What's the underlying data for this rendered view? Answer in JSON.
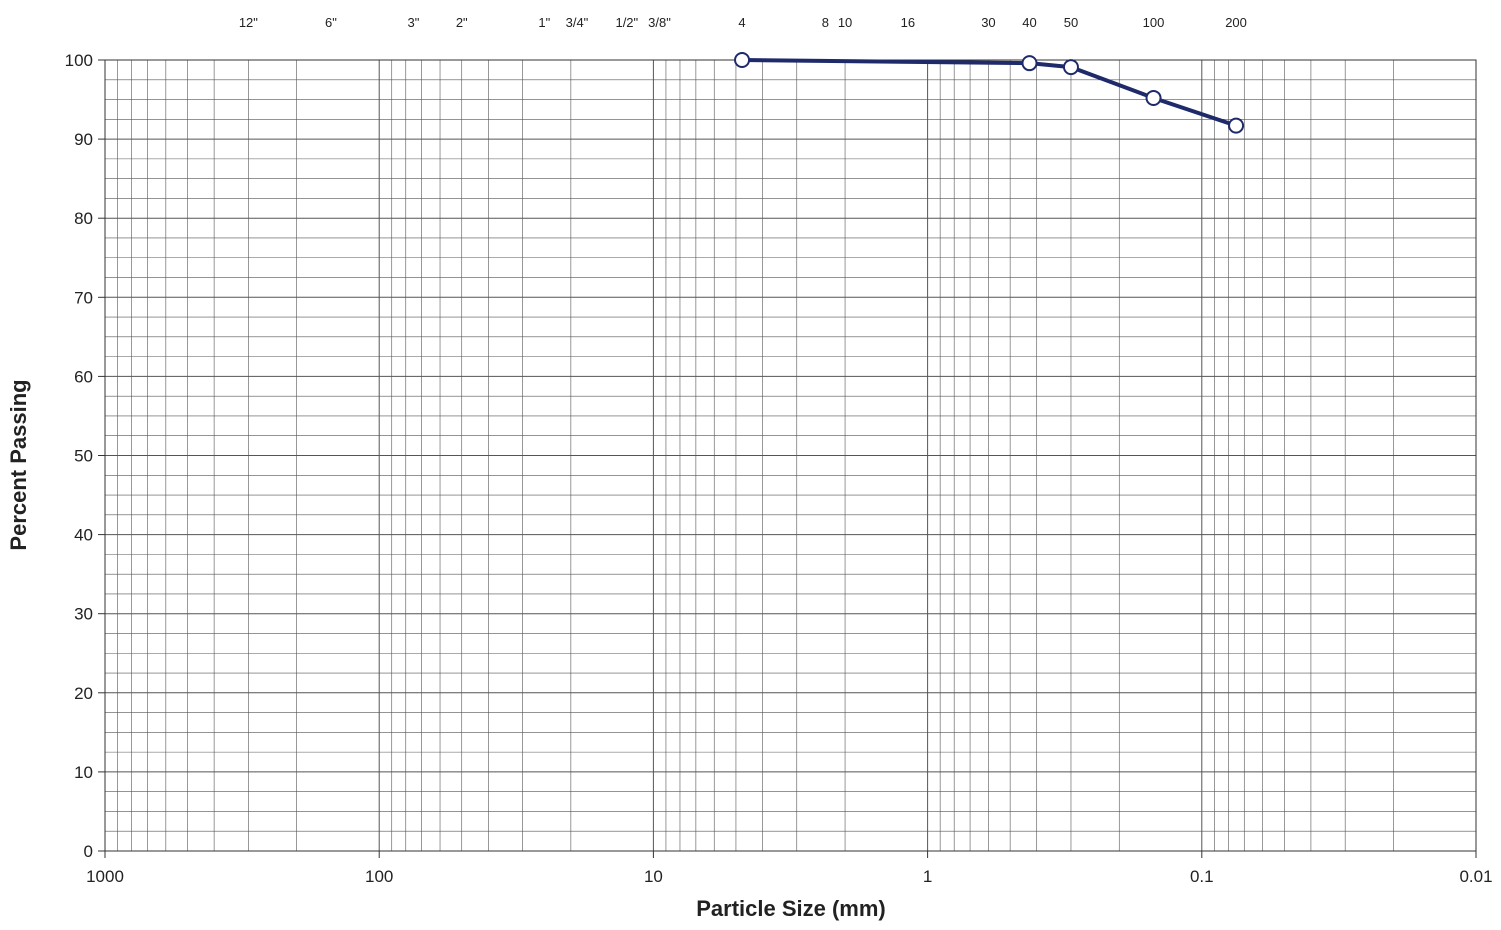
{
  "chart_data": {
    "type": "line",
    "title": "",
    "xlabel": "Particle Size (mm)",
    "ylabel": "Percent Passing",
    "x_scale": "log",
    "x_reversed": true,
    "xlim": [
      1000,
      0.01
    ],
    "ylim": [
      0,
      100
    ],
    "grid": true,
    "x_ticks": [
      {
        "value": 1000,
        "label": "1000"
      },
      {
        "value": 100,
        "label": "100"
      },
      {
        "value": 10,
        "label": "10"
      },
      {
        "value": 1,
        "label": "1"
      },
      {
        "value": 0.1,
        "label": "0.1"
      },
      {
        "value": 0.01,
        "label": "0.01"
      }
    ],
    "y_ticks": [
      0,
      10,
      20,
      30,
      40,
      50,
      60,
      70,
      80,
      90,
      100
    ],
    "sieve_labels": [
      {
        "label": "12\"",
        "size": 300
      },
      {
        "label": "6\"",
        "size": 150
      },
      {
        "label": "3\"",
        "size": 75
      },
      {
        "label": "2\"",
        "size": 50
      },
      {
        "label": "1\"",
        "size": 25
      },
      {
        "label": "3/4\"",
        "size": 19
      },
      {
        "label": "1/2\"",
        "size": 12.5
      },
      {
        "label": "3/8\"",
        "size": 9.5
      },
      {
        "label": "4",
        "size": 4.75
      },
      {
        "label": "8",
        "size": 2.36
      },
      {
        "label": "10",
        "size": 2.0
      },
      {
        "label": "16",
        "size": 1.18
      },
      {
        "label": "30",
        "size": 0.6
      },
      {
        "label": "40",
        "size": 0.425
      },
      {
        "label": "50",
        "size": 0.3
      },
      {
        "label": "100",
        "size": 0.15
      },
      {
        "label": "200",
        "size": 0.075
      }
    ],
    "series": [
      {
        "color": "#1f2a6b",
        "points": [
          {
            "x": 4.75,
            "y": 100
          },
          {
            "x": 0.425,
            "y": 99.6
          },
          {
            "x": 0.3,
            "y": 99.1
          },
          {
            "x": 0.15,
            "y": 95.2
          },
          {
            "x": 0.075,
            "y": 91.7
          }
        ]
      }
    ]
  }
}
